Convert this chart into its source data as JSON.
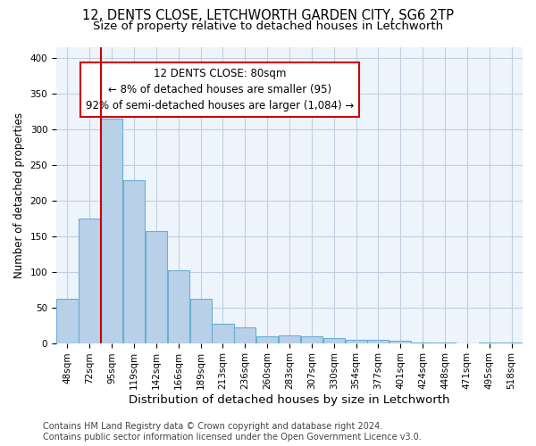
{
  "title1": "12, DENTS CLOSE, LETCHWORTH GARDEN CITY, SG6 2TP",
  "title2": "Size of property relative to detached houses in Letchworth",
  "xlabel": "Distribution of detached houses by size in Letchworth",
  "ylabel": "Number of detached properties",
  "categories": [
    "48sqm",
    "72sqm",
    "95sqm",
    "119sqm",
    "142sqm",
    "166sqm",
    "189sqm",
    "213sqm",
    "236sqm",
    "260sqm",
    "283sqm",
    "307sqm",
    "330sqm",
    "354sqm",
    "377sqm",
    "401sqm",
    "424sqm",
    "448sqm",
    "471sqm",
    "495sqm",
    "518sqm"
  ],
  "values": [
    62,
    175,
    315,
    228,
    157,
    102,
    62,
    27,
    22,
    9,
    11,
    10,
    7,
    5,
    4,
    3,
    1,
    1,
    0,
    1,
    1
  ],
  "bar_color": "#b8d0e8",
  "bar_edge_color": "#6baed6",
  "vline_x": 1.5,
  "vline_color": "#cc0000",
  "annotation_line1": "12 DENTS CLOSE: 80sqm",
  "annotation_line2": "← 8% of detached houses are smaller (95)",
  "annotation_line3": "92% of semi-detached houses are larger (1,084) →",
  "annotation_box_color": "#ffffff",
  "annotation_box_edge": "#cc0000",
  "ylim": [
    0,
    415
  ],
  "yticks": [
    0,
    50,
    100,
    150,
    200,
    250,
    300,
    350,
    400
  ],
  "background_color": "#ffffff",
  "plot_bg_color": "#eef4fb",
  "grid_color": "#c0d0e0",
  "title_fontsize": 10.5,
  "subtitle_fontsize": 9.5,
  "xlabel_fontsize": 9.5,
  "ylabel_fontsize": 8.5,
  "tick_fontsize": 7.5,
  "footer_fontsize": 7,
  "annotation_fontsize": 8.5,
  "footer": "Contains HM Land Registry data © Crown copyright and database right 2024.\nContains public sector information licensed under the Open Government Licence v3.0."
}
